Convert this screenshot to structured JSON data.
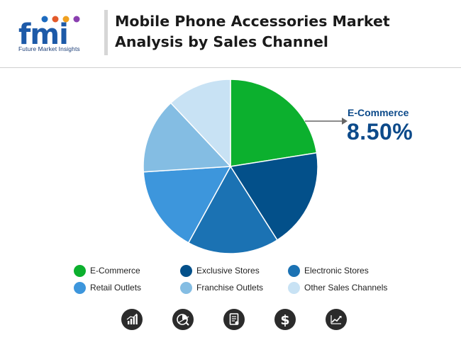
{
  "header": {
    "logo_letters": "fmi",
    "logo_subtitle": "Future Market Insights",
    "title_line1": "Mobile Phone Accessories Market",
    "title_line2": "Analysis by Sales Channel"
  },
  "colors": {
    "e_commerce": "#0cb02e",
    "exclusive_stores": "#03508a",
    "electronic_stores": "#1b72b3",
    "retail_outlets": "#3d96dc",
    "franchise_outlets": "#84bde3",
    "other_sales_channels": "#c8e2f4",
    "callout": "#0c4a8a"
  },
  "chart_data": {
    "type": "pie",
    "title": "Mobile Phone Accessories Market Analysis by Sales Channel",
    "slices": [
      {
        "label": "E-Commerce",
        "value": 22.5,
        "color": "#0cb02e"
      },
      {
        "label": "Exclusive Stores",
        "value": 18.5,
        "color": "#03508a"
      },
      {
        "label": "Electronic Stores",
        "value": 17.0,
        "color": "#1b72b3"
      },
      {
        "label": "Retail Outlets",
        "value": 16.0,
        "color": "#3d96dc"
      },
      {
        "label": "Franchise Outlets",
        "value": 14.0,
        "color": "#84bde3"
      },
      {
        "label": "Other Sales Channels",
        "value": 12.0,
        "color": "#c8e2f4"
      }
    ],
    "annotation": {
      "label": "E-Commerce",
      "value": "8.50%"
    },
    "legend_placement": "bottom"
  },
  "icons": [
    "bar-growth-icon",
    "pie-analysis-icon",
    "report-document-icon",
    "dollar-icon",
    "trend-chart-icon"
  ]
}
